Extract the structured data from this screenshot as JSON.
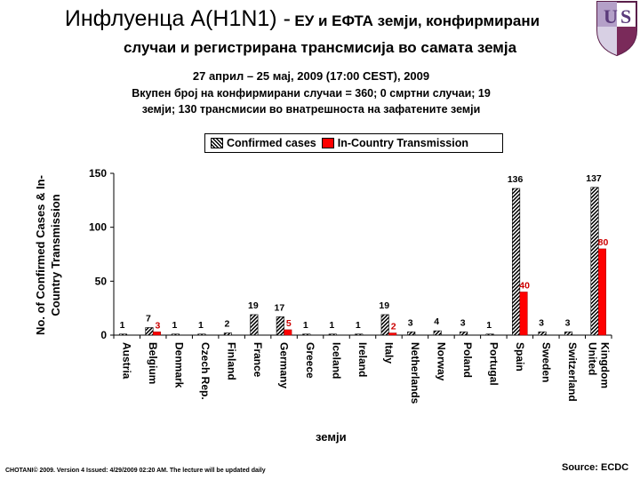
{
  "header": {
    "title_main": "Инфлуенца А(H1N1) -",
    "title_part2": "ЕУ и ЕФТА земји,",
    "title_part3": "конфирмирани",
    "title_line2": "случаи и регистрирана трансмисија во самата земја"
  },
  "subtitle": {
    "line1": "27 април – 25 мај, 2009 (17:00 CEST), 2009",
    "line2": "Вкупен број на конфирмирани случаи = 360; 0 смртни случаи; 19",
    "line3": "земји; 130 трансмисии во внатрешноста на зафатените земји"
  },
  "footer": {
    "left": "CHOTANI© 2009. Version 4 Issued: 4/29/2009 02:20 AM. The lecture will be updated daily",
    "right": "Source: ECDC"
  },
  "chart_data": {
    "type": "bar",
    "ylabel_line1": "No. of Confirmed Cases & In-",
    "ylabel_line2": "Country Transmission",
    "xlabel": "земји",
    "ylim": [
      0,
      150
    ],
    "yticks": [
      "0",
      "50",
      "100",
      "150"
    ],
    "legend_position": "top",
    "categories": [
      [
        "Austria"
      ],
      [
        "Belgium"
      ],
      [
        "Denmark"
      ],
      [
        "Czech Rep."
      ],
      [
        "Finland"
      ],
      [
        "France"
      ],
      [
        "Germany"
      ],
      [
        "Greece"
      ],
      [
        "Iceland"
      ],
      [
        "Ireland"
      ],
      [
        "Italy"
      ],
      [
        "Netherlands"
      ],
      [
        "Norway"
      ],
      [
        "Poland"
      ],
      [
        "Portugal"
      ],
      [
        "Spain"
      ],
      [
        "Sweden"
      ],
      [
        "Switzerland"
      ],
      [
        "United",
        "Kingdom"
      ]
    ],
    "series": [
      {
        "name": "Confirmed cases",
        "pattern": "hatched",
        "color": "#000000",
        "values": [
          1,
          7,
          1,
          1,
          2,
          19,
          17,
          1,
          1,
          1,
          19,
          3,
          4,
          3,
          1,
          136,
          3,
          3,
          137
        ],
        "labels": [
          "1",
          "7",
          "1",
          "1",
          "2",
          "19",
          "17",
          "1",
          "1",
          "1",
          "19",
          "3",
          "4",
          "3",
          "1",
          "136",
          "3",
          "3",
          "137"
        ]
      },
      {
        "name": "In-Country Transmission",
        "color": "#ff0000",
        "label_color": "#cc0000",
        "values": [
          0,
          3,
          0,
          0,
          0,
          0,
          5,
          0,
          0,
          0,
          2,
          0,
          0,
          0,
          0,
          40,
          0,
          0,
          80
        ],
        "labels": [
          "",
          "3",
          "",
          "",
          "",
          "",
          "5",
          "",
          "",
          "",
          "2",
          "",
          "",
          "",
          "",
          "40",
          "",
          "",
          "80"
        ]
      }
    ]
  }
}
